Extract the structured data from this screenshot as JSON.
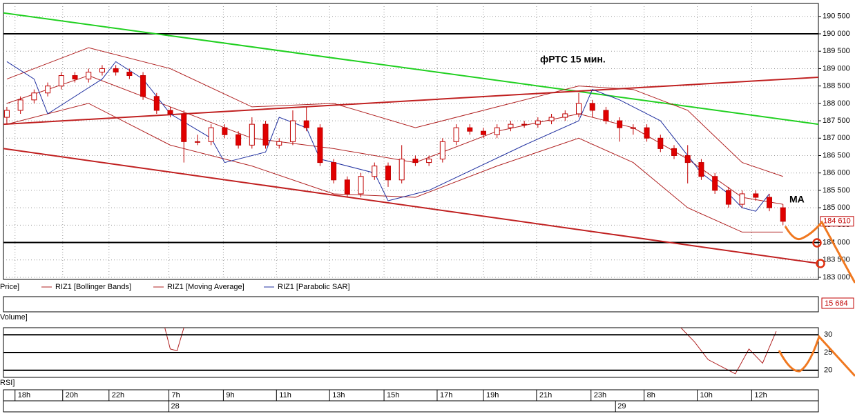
{
  "chart_data": {
    "type": "candlestick",
    "annotations": {
      "title": "фРТС   15 мин.",
      "ma": "MA"
    },
    "price_label": "Price]",
    "volume_label": "Volume]",
    "rsi_label": "RSI]",
    "xlim": [
      -0.25,
      59.6
    ],
    "ylim": [
      182940,
      190873
    ],
    "yticks": [
      {
        "value": 183000,
        "label": "183 000"
      },
      {
        "value": 183500,
        "label": "183 500"
      },
      {
        "value": 184000,
        "label": "184 000"
      },
      {
        "value": 184500,
        "label": "184 500"
      },
      {
        "value": 185000,
        "label": "185 000"
      },
      {
        "value": 185500,
        "label": "185 500"
      },
      {
        "value": 186000,
        "label": "186 000"
      },
      {
        "value": 186500,
        "label": "186 500"
      },
      {
        "value": 187000,
        "label": "187 000"
      },
      {
        "value": 187500,
        "label": "187 500"
      },
      {
        "value": 188000,
        "label": "188 000"
      },
      {
        "value": 188500,
        "label": "188 500"
      },
      {
        "value": 189000,
        "label": "189 000"
      },
      {
        "value": 189500,
        "label": "189 500"
      },
      {
        "value": 190000,
        "label": "190 000"
      },
      {
        "value": 190500,
        "label": "190 500"
      }
    ],
    "xticks": [
      {
        "value": 0.6,
        "label": "18h"
      },
      {
        "value": 4.1,
        "label": "20h"
      },
      {
        "value": 7.5,
        "label": "22h"
      },
      {
        "value": 11.9,
        "label": "7h"
      },
      {
        "value": 15.9,
        "label": "9h"
      },
      {
        "value": 19.8,
        "label": "11h"
      },
      {
        "value": 23.7,
        "label": "13h"
      },
      {
        "value": 27.7,
        "label": "15h"
      },
      {
        "value": 31.6,
        "label": "17h"
      },
      {
        "value": 35.0,
        "label": "19h"
      },
      {
        "value": 38.9,
        "label": "21h"
      },
      {
        "value": 42.9,
        "label": "23h"
      },
      {
        "value": 46.8,
        "label": "8h"
      },
      {
        "value": 50.7,
        "label": "10h"
      },
      {
        "value": 54.7,
        "label": "12h"
      }
    ],
    "dates": [
      {
        "value": 11.9,
        "label": "28"
      },
      {
        "value": 44.7,
        "label": "29"
      }
    ],
    "grid": true,
    "up_color": "#ffffff",
    "down_color": "#e00000",
    "candle_edge": "#c00000",
    "candles": [
      [
        187600,
        187900,
        187400,
        187800
      ],
      [
        187800,
        188200,
        187700,
        188100
      ],
      [
        188100,
        188400,
        188000,
        188300
      ],
      [
        188300,
        188600,
        188200,
        188500
      ],
      [
        188500,
        188900,
        188400,
        188800
      ],
      [
        188800,
        188900,
        188600,
        188700
      ],
      [
        188700,
        189000,
        188600,
        188900
      ],
      [
        188900,
        189100,
        188800,
        189000
      ],
      [
        189000,
        189100,
        188800,
        188900
      ],
      [
        188900,
        189000,
        188700,
        188800
      ],
      [
        188800,
        188900,
        188100,
        188200
      ],
      [
        188200,
        188300,
        187700,
        187800
      ],
      [
        187800,
        187900,
        187600,
        187700
      ],
      [
        187700,
        187800,
        186300,
        186900
      ],
      [
        186900,
        187100,
        186800,
        186900
      ],
      [
        186900,
        187400,
        186800,
        187300
      ],
      [
        187300,
        187400,
        187000,
        187100
      ],
      [
        187100,
        187200,
        186700,
        186800
      ],
      [
        186800,
        187600,
        186700,
        187400
      ],
      [
        187400,
        187500,
        186700,
        186800
      ],
      [
        186800,
        187000,
        186700,
        186900
      ],
      [
        186900,
        187800,
        186800,
        187500
      ],
      [
        187500,
        187900,
        187200,
        187300
      ],
      [
        187300,
        187400,
        186200,
        186300
      ],
      [
        186300,
        186400,
        185700,
        185800
      ],
      [
        185800,
        185900,
        185300,
        185400
      ],
      [
        185400,
        186000,
        185300,
        185900
      ],
      [
        185900,
        186300,
        185800,
        186200
      ],
      [
        186200,
        186300,
        185600,
        185800
      ],
      [
        185800,
        186800,
        185700,
        186400
      ],
      [
        186400,
        186500,
        186200,
        186300
      ],
      [
        186300,
        186500,
        186200,
        186400
      ],
      [
        186400,
        187000,
        186300,
        186900
      ],
      [
        186900,
        187400,
        186800,
        187300
      ],
      [
        187300,
        187400,
        187100,
        187200
      ],
      [
        187200,
        187300,
        187000,
        187100
      ],
      [
        187100,
        187400,
        187000,
        187300
      ],
      [
        187300,
        187500,
        187200,
        187400
      ],
      [
        187400,
        187500,
        187300,
        187400
      ],
      [
        187400,
        187600,
        187300,
        187500
      ],
      [
        187500,
        187700,
        187400,
        187600
      ],
      [
        187600,
        187800,
        187500,
        187700
      ],
      [
        187700,
        188300,
        187600,
        188000
      ],
      [
        188000,
        188100,
        187600,
        187800
      ],
      [
        187800,
        187900,
        187400,
        187500
      ],
      [
        187500,
        187600,
        186900,
        187300
      ],
      [
        187300,
        187400,
        187100,
        187300
      ],
      [
        187300,
        187400,
        186900,
        187000
      ],
      [
        187000,
        187100,
        186600,
        186700
      ],
      [
        186700,
        186800,
        186400,
        186500
      ],
      [
        186500,
        186800,
        185700,
        186300
      ],
      [
        186300,
        186400,
        185800,
        185900
      ],
      [
        185900,
        186000,
        185400,
        185500
      ],
      [
        185500,
        185600,
        185000,
        185100
      ],
      [
        185100,
        185500,
        185000,
        185400
      ],
      [
        185400,
        185500,
        185200,
        185300
      ],
      [
        185300,
        185400,
        184900,
        185000
      ],
      [
        185000,
        185100,
        184500,
        184610
      ]
    ],
    "last_label": {
      "value": 184610,
      "label": "184 610"
    },
    "volume_last": "15 684",
    "series": [
      {
        "name": "RIZ1 [Bollinger Bands]",
        "color": "#b02020",
        "x": [
          0,
          6,
          12,
          18,
          24,
          30,
          36,
          42,
          46,
          50,
          54,
          57
        ],
        "values": [
          188700,
          189600,
          189000,
          187900,
          188000,
          187300,
          187900,
          188500,
          188400,
          187800,
          186300,
          185900
        ]
      },
      {
        "name": "RIZ1 [Bollinger Bands]",
        "color": "#b02020",
        "x": [
          0,
          6,
          12,
          18,
          24,
          30,
          36,
          42,
          46,
          50,
          54,
          57
        ],
        "values": [
          187400,
          188000,
          186800,
          186200,
          185400,
          185300,
          186200,
          187000,
          186300,
          185000,
          184300,
          184300
        ]
      },
      {
        "name": "RIZ1 [Moving Average]",
        "color": "#b02020",
        "x": [
          0,
          6,
          12,
          18,
          24,
          30,
          36,
          42,
          46,
          50,
          54,
          57
        ],
        "values": [
          188000,
          188800,
          187900,
          187000,
          186700,
          186300,
          187200,
          187700,
          187300,
          186400,
          185300,
          185100
        ]
      },
      {
        "name": "RIZ1 [Parabolic SAR]",
        "color": "#2030a0",
        "x": [
          0,
          2,
          3,
          7,
          8,
          10,
          12,
          15,
          16,
          19,
          20,
          22,
          23,
          27,
          28,
          31,
          38,
          42,
          43,
          45,
          48,
          51,
          53,
          54,
          55,
          56
        ],
        "values": [
          189200,
          188700,
          187700,
          188700,
          189200,
          188700,
          187700,
          187000,
          186300,
          186600,
          187600,
          187300,
          186400,
          186000,
          185200,
          185500,
          186800,
          187500,
          188400,
          188100,
          187500,
          186000,
          185400,
          185000,
          184900,
          185400
        ]
      }
    ],
    "trendlines": [
      {
        "color": "#20d020",
        "x": [
          -0.25,
          59.6
        ],
        "values": [
          190600,
          187400
        ]
      },
      {
        "color": "#c02020",
        "x": [
          -0.25,
          59.6
        ],
        "values": [
          187400,
          188750
        ]
      },
      {
        "color": "#c02020",
        "x": [
          -0.25,
          59.6
        ],
        "values": [
          186700,
          183400
        ]
      }
    ],
    "levels": [
      190000,
      184000
    ],
    "rsi": {
      "ylim": [
        18,
        32
      ],
      "yticks": [
        20,
        25,
        30
      ],
      "color": "#b02020",
      "x": [
        11.6,
        12.0,
        12.5,
        13.0,
        30,
        49.5,
        50.5,
        51.5,
        52.5,
        53.5,
        54.5,
        55.5,
        56.5
      ],
      "values": [
        32,
        26,
        25.5,
        32,
        null,
        32,
        28,
        23,
        21,
        19,
        26,
        22,
        31
      ]
    }
  }
}
